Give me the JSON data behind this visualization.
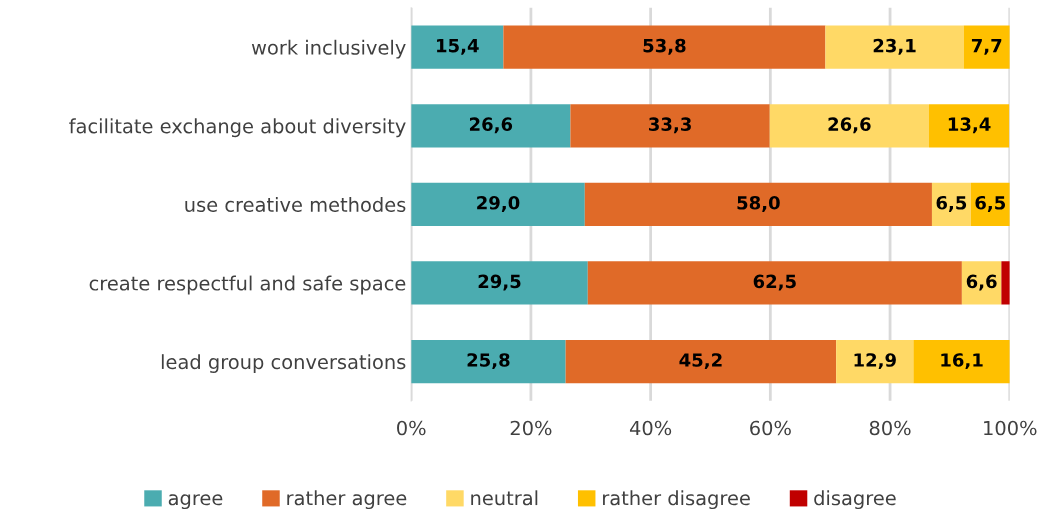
{
  "chart_data": {
    "type": "bar",
    "orientation": "horizontal",
    "stacked": true,
    "categories": [
      "work inclusively",
      "facilitate exchange about diversity",
      "use creative methodes",
      "create respectful and safe space",
      "lead group conversations"
    ],
    "series": [
      {
        "name": "agree",
        "color": "#4bacb0",
        "values": [
          15.4,
          26.6,
          29.0,
          29.5,
          25.8
        ],
        "value_labels": [
          "15,4",
          "26,6",
          "29,0",
          "29,5",
          "25,8"
        ]
      },
      {
        "name": "rather agree",
        "color": "#e06a28",
        "values": [
          53.8,
          33.3,
          58.0,
          62.5,
          45.2
        ],
        "value_labels": [
          "53,8",
          "33,3",
          "58,0",
          "62,5",
          "45,2"
        ]
      },
      {
        "name": "neutral",
        "color": "#ffd966",
        "values": [
          23.1,
          26.6,
          6.5,
          6.6,
          12.9
        ],
        "value_labels": [
          "23,1",
          "26,6",
          "6,5",
          "6,6",
          "12,9"
        ]
      },
      {
        "name": "rather disagree",
        "color": "#ffc000",
        "values": [
          7.7,
          13.4,
          6.5,
          0,
          16.1
        ],
        "value_labels": [
          "7,7",
          "13,4",
          "6,5",
          null,
          "16,1"
        ]
      },
      {
        "name": "disagree",
        "color": "#c00000",
        "values": [
          0,
          0,
          0,
          1.4,
          0
        ],
        "value_labels": [
          null,
          null,
          null,
          null,
          null
        ]
      }
    ],
    "xlim": [
      0,
      100
    ],
    "xticks": [
      {
        "value": 0,
        "label": "0%"
      },
      {
        "value": 20,
        "label": "20%"
      },
      {
        "value": 40,
        "label": "40%"
      },
      {
        "value": 60,
        "label": "60%"
      },
      {
        "value": 80,
        "label": "80%"
      },
      {
        "value": 100,
        "label": "100%"
      }
    ],
    "grid": "x",
    "legend": "bottom"
  }
}
